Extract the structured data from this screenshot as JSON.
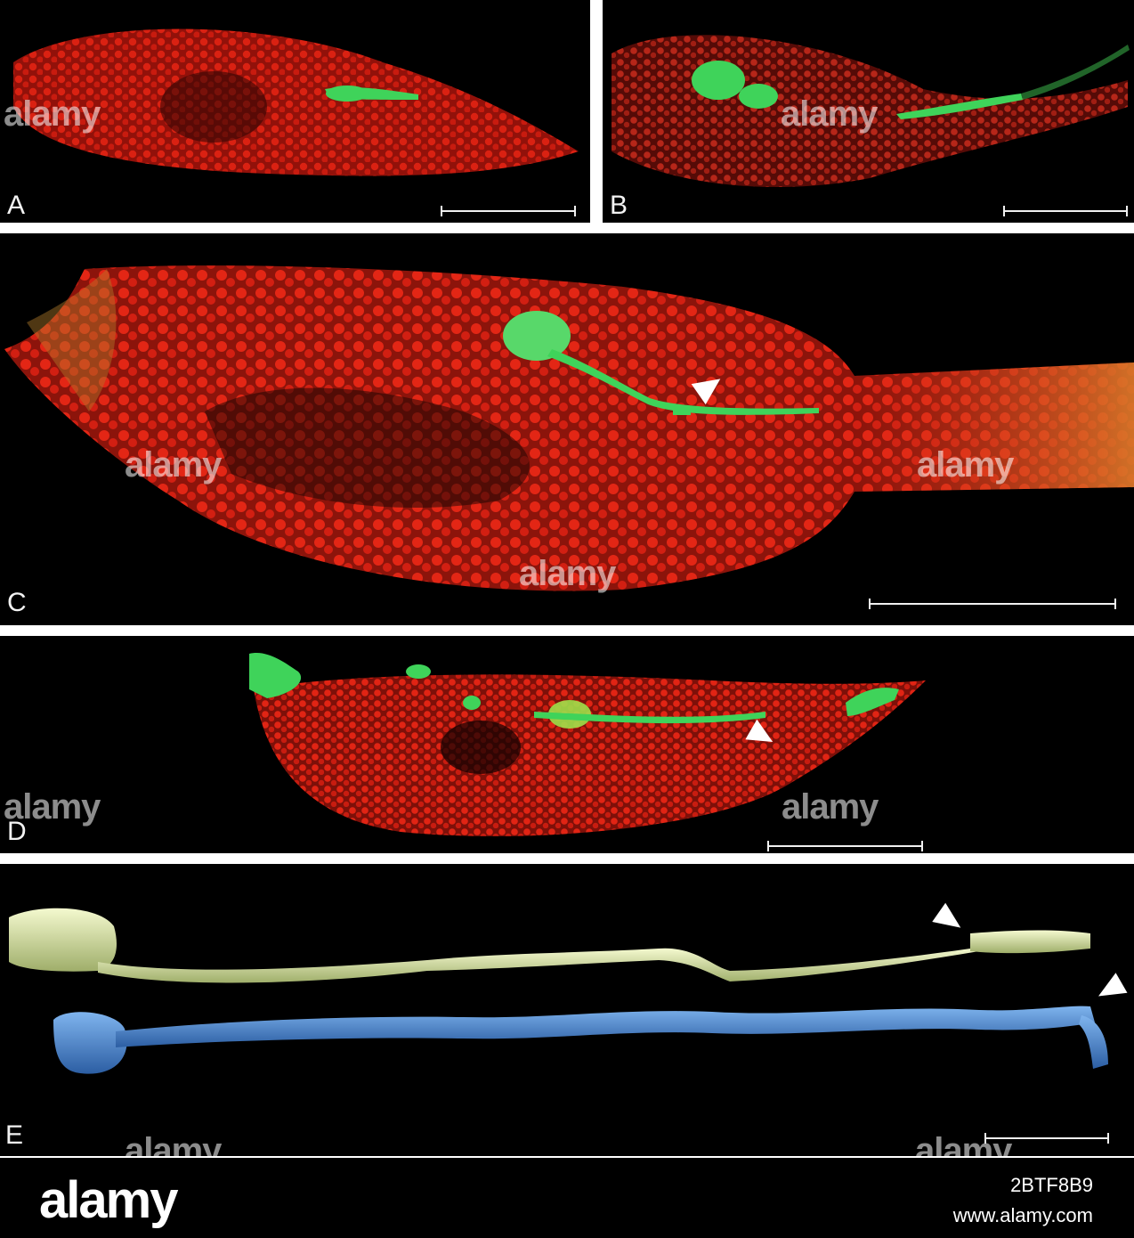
{
  "panels": [
    {
      "label": "A"
    },
    {
      "label": "B"
    },
    {
      "label": "C"
    },
    {
      "label": "D"
    },
    {
      "label": "E"
    }
  ],
  "watermark": "alamy",
  "footer": {
    "logo": "alamy",
    "image_id": "2BTF8B9",
    "site": "www.alamy.com"
  },
  "colors": {
    "tissue_red": "#d81e10",
    "neuron_green": "#3fd35a",
    "reconstruction_yellow": "#e3ecb2",
    "reconstruction_blue": "#4d8fd6",
    "background": "#000000",
    "border": "#ffffff"
  }
}
